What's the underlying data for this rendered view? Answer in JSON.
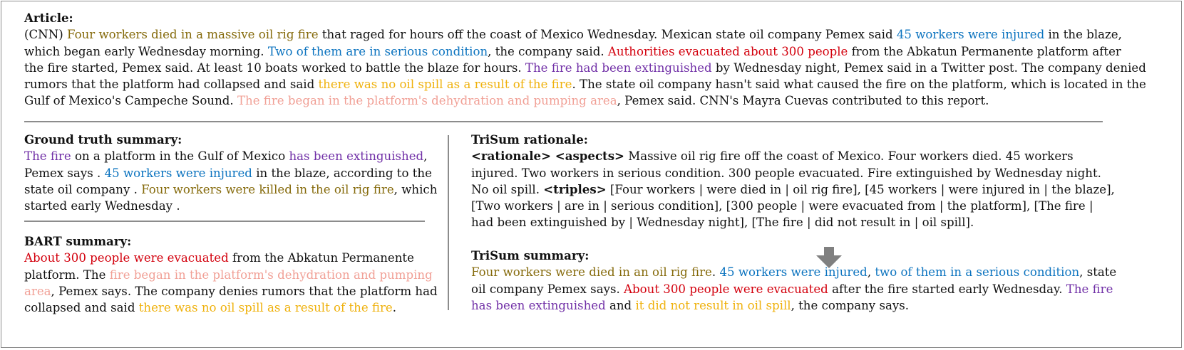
{
  "article": {
    "heading": "Article:",
    "lines": [
      [
        {
          "t": "(CNN) ",
          "c": ""
        },
        {
          "t": "Four workers died in a massive oil rig fire",
          "c": "c-olive"
        },
        {
          "t": " that raged for hours off the coast of Mexico Wednesday. Mexican state oil company Pemex said ",
          "c": ""
        },
        {
          "t": "45 workers were injured",
          "c": "c-blue"
        },
        {
          "t": " in the blaze,",
          "c": ""
        }
      ],
      [
        {
          "t": "which began early Wednesday morning. ",
          "c": ""
        },
        {
          "t": "Two of them are in serious condition",
          "c": "c-blue"
        },
        {
          "t": ", the company said. ",
          "c": ""
        },
        {
          "t": "Authorities evacuated about 300 people",
          "c": "c-red"
        },
        {
          "t": " from the Abkatun Permanente platform after",
          "c": ""
        }
      ],
      [
        {
          "t": "the fire started, Pemex said. At least 10 boats worked to battle the blaze for hours. ",
          "c": ""
        },
        {
          "t": "The fire had been extinguished",
          "c": "c-purple"
        },
        {
          "t": " by Wednesday night, Pemex said in a Twitter post. The company denied",
          "c": ""
        }
      ],
      [
        {
          "t": "rumors that the platform had collapsed and said ",
          "c": ""
        },
        {
          "t": "there was no oil spill as a result of the fire",
          "c": "c-gold"
        },
        {
          "t": ". The state oil company hasn't said what caused the fire on the platform, which is located in the",
          "c": ""
        }
      ],
      [
        {
          "t": "Gulf of Mexico's Campeche Sound. ",
          "c": ""
        },
        {
          "t": "The fire began in the platform's dehydration and pumping area",
          "c": "c-pink"
        },
        {
          "t": ", Pemex said. CNN's Mayra Cuevas contributed to this report.",
          "c": ""
        }
      ]
    ]
  },
  "ground_truth": {
    "heading": "Ground truth summary:",
    "lines": [
      [
        {
          "t": "The fire",
          "c": "c-purple"
        },
        {
          "t": " on a platform in the Gulf of Mexico ",
          "c": ""
        },
        {
          "t": "has been extinguished",
          "c": "c-purple"
        },
        {
          "t": ",",
          "c": ""
        }
      ],
      [
        {
          "t": "Pemex says . ",
          "c": ""
        },
        {
          "t": "45 workers were injured",
          "c": "c-blue"
        },
        {
          "t": " in the blaze, according to the",
          "c": ""
        }
      ],
      [
        {
          "t": "state oil company . ",
          "c": ""
        },
        {
          "t": "Four workers were killed in the oil rig fire",
          "c": "c-olive"
        },
        {
          "t": ", which",
          "c": ""
        }
      ],
      [
        {
          "t": "started early Wednesday .",
          "c": ""
        }
      ]
    ]
  },
  "bart": {
    "heading": "BART summary:",
    "lines": [
      [
        {
          "t": "About 300 people were evacuated",
          "c": "c-red"
        },
        {
          "t": " from the Abkatun Permanente",
          "c": ""
        }
      ],
      [
        {
          "t": "platform. The ",
          "c": ""
        },
        {
          "t": "fire began in the platform's dehydration and pumping",
          "c": "c-pink"
        }
      ],
      [
        {
          "t": "area",
          "c": "c-pink"
        },
        {
          "t": ", Pemex says. The company denies rumors that the platform had",
          "c": ""
        }
      ],
      [
        {
          "t": "collapsed and said ",
          "c": ""
        },
        {
          "t": "there was no oil spill as a result of the fire",
          "c": "c-gold"
        },
        {
          "t": ".",
          "c": ""
        }
      ]
    ]
  },
  "rationale": {
    "heading": "TriSum rationale:",
    "lines": [
      [
        {
          "t": "<rationale> <aspects>",
          "c": "",
          "b": true
        },
        {
          "t": " Massive oil rig fire off the coast of Mexico. Four workers died. 45 workers",
          "c": ""
        }
      ],
      [
        {
          "t": "injured. Two workers in serious condition. 300 people evacuated. Fire extinguished by Wednesday night.",
          "c": ""
        }
      ],
      [
        {
          "t": "No oil spill. ",
          "c": ""
        },
        {
          "t": "<triples>",
          "c": "",
          "b": true
        },
        {
          "t": " [Four workers | were died in | oil rig fire], [45 workers | were injured in | the blaze],",
          "c": ""
        }
      ],
      [
        {
          "t": "[Two workers | are in | serious condition], [300 people | were evacuated from | the platform], [The fire |",
          "c": ""
        }
      ],
      [
        {
          "t": "had been extinguished by | Wednesday night], [The fire | did not result in | oil spill].",
          "c": ""
        }
      ]
    ]
  },
  "trisum": {
    "heading": "TriSum summary:",
    "lines": [
      [
        {
          "t": "Four workers were died in an oil rig fire",
          "c": "c-olive"
        },
        {
          "t": ". ",
          "c": ""
        },
        {
          "t": "45 workers were injured",
          "c": "c-blue"
        },
        {
          "t": ", ",
          "c": ""
        },
        {
          "t": "two of them in a serious condition",
          "c": "c-blue"
        },
        {
          "t": ", state",
          "c": ""
        }
      ],
      [
        {
          "t": "oil company Pemex says. ",
          "c": ""
        },
        {
          "t": "About 300 people were evacuated",
          "c": "c-red"
        },
        {
          "t": " after the fire started early Wednesday. ",
          "c": ""
        },
        {
          "t": "The fire",
          "c": "c-purple"
        }
      ],
      [
        {
          "t": "has been extinguished",
          "c": "c-purple"
        },
        {
          "t": " and ",
          "c": ""
        },
        {
          "t": "it did not result in oil spill",
          "c": "c-gold"
        },
        {
          "t": ", the company says.",
          "c": ""
        }
      ]
    ]
  },
  "colors": {
    "olive": "#856a0b",
    "blue": "#0b73bf",
    "red": "#d3000d",
    "purple": "#7130a7",
    "gold": "#efb10c",
    "pink": "#f1a096",
    "rule": "#8c8c8c"
  },
  "icons": {
    "arrow": "down-arrow-icon"
  }
}
